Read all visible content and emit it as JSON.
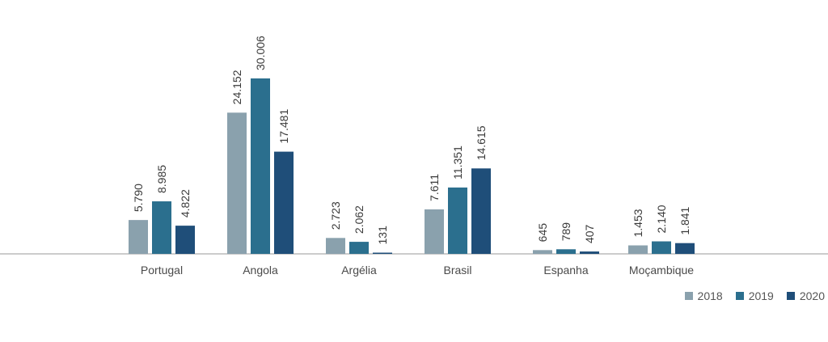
{
  "chart_data": {
    "type": "bar",
    "categories": [
      "Portugal",
      "Angola",
      "Argélia",
      "Brasil",
      "Espanha",
      "Moçambique"
    ],
    "series": [
      {
        "name": "2018",
        "color": "#8aa1ad",
        "values": [
          5790,
          24152,
          2723,
          7611,
          645,
          1453
        ],
        "labels": [
          "5.790",
          "24.152",
          "2.723",
          "7.611",
          "645",
          "1.453"
        ]
      },
      {
        "name": "2019",
        "color": "#2b6f8e",
        "values": [
          8985,
          30006,
          2062,
          11351,
          789,
          2140
        ],
        "labels": [
          "8.985",
          "30.006",
          "2.062",
          "11.351",
          "789",
          "2.140"
        ]
      },
      {
        "name": "2020",
        "color": "#1f4e79",
        "values": [
          4822,
          17481,
          131,
          14615,
          407,
          1841
        ],
        "labels": [
          "4.822",
          "17.481",
          "131",
          "14.615",
          "407",
          "1.841"
        ]
      }
    ],
    "ylim": [
      0,
      30006
    ],
    "grid": false,
    "legend_position": "bottom-right"
  }
}
